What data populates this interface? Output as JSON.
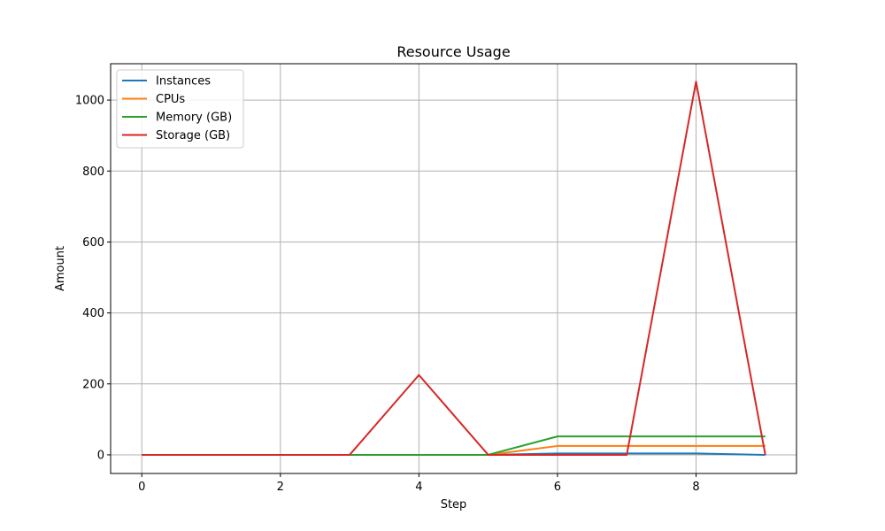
{
  "chart_data": {
    "type": "line",
    "title": "Resource Usage",
    "xlabel": "Step",
    "ylabel": "Amount",
    "x": [
      0,
      1,
      2,
      3,
      4,
      5,
      6,
      7,
      8,
      9
    ],
    "xlim": [
      -0.45,
      9.45
    ],
    "ylim": [
      -52.5,
      1102.5
    ],
    "xticks": [
      0,
      2,
      4,
      6,
      8
    ],
    "yticks": [
      0,
      200,
      400,
      600,
      800,
      1000
    ],
    "grid": true,
    "legend_position": "top-left",
    "series": [
      {
        "name": "Instances",
        "color": "#1f77b4",
        "values": [
          0,
          0,
          0,
          0,
          0,
          0,
          4,
          4,
          4,
          0
        ]
      },
      {
        "name": "CPUs",
        "color": "#ff7f0e",
        "values": [
          0,
          0,
          0,
          0,
          0,
          0,
          25,
          25,
          25,
          25
        ]
      },
      {
        "name": "Memory (GB)",
        "color": "#2ca02c",
        "values": [
          0,
          0,
          0,
          0,
          0,
          0,
          52,
          52,
          52,
          52
        ]
      },
      {
        "name": "Storage (GB)",
        "color": "#d62728",
        "values": [
          0,
          0,
          0,
          0,
          225,
          0,
          0,
          0,
          1052,
          0
        ]
      }
    ]
  }
}
